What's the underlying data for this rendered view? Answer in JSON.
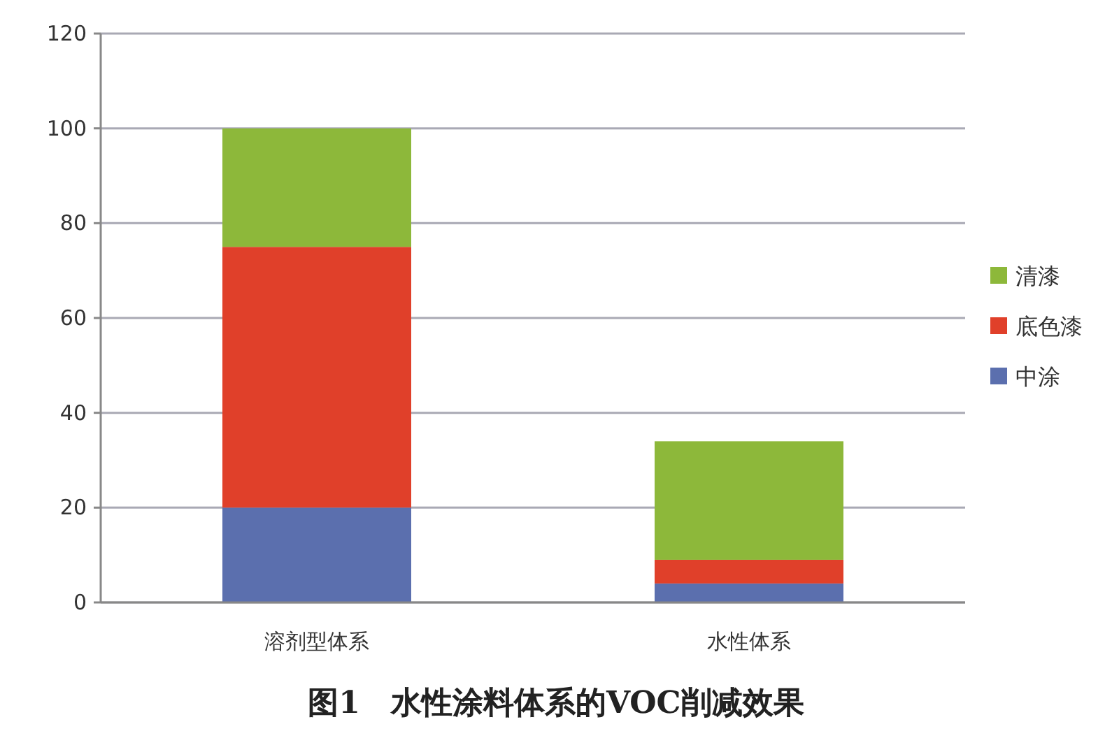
{
  "chart_data": {
    "type": "bar",
    "title": "图1　水性涂料体系的VOC削减效果",
    "categories": [
      "溶剂型体系",
      "水性体系"
    ],
    "stacked": true,
    "series": [
      {
        "name": "中涂",
        "color": "#5b6fae",
        "values": [
          20,
          4
        ]
      },
      {
        "name": "底色漆",
        "color": "#e0402a",
        "values": [
          55,
          5
        ]
      },
      {
        "name": "清漆",
        "color": "#8db83a",
        "values": [
          25,
          25
        ]
      }
    ],
    "ylim": [
      0,
      120
    ],
    "yticks": [
      0,
      20,
      40,
      60,
      80,
      100,
      120
    ],
    "grid": "y",
    "legend": "right"
  }
}
